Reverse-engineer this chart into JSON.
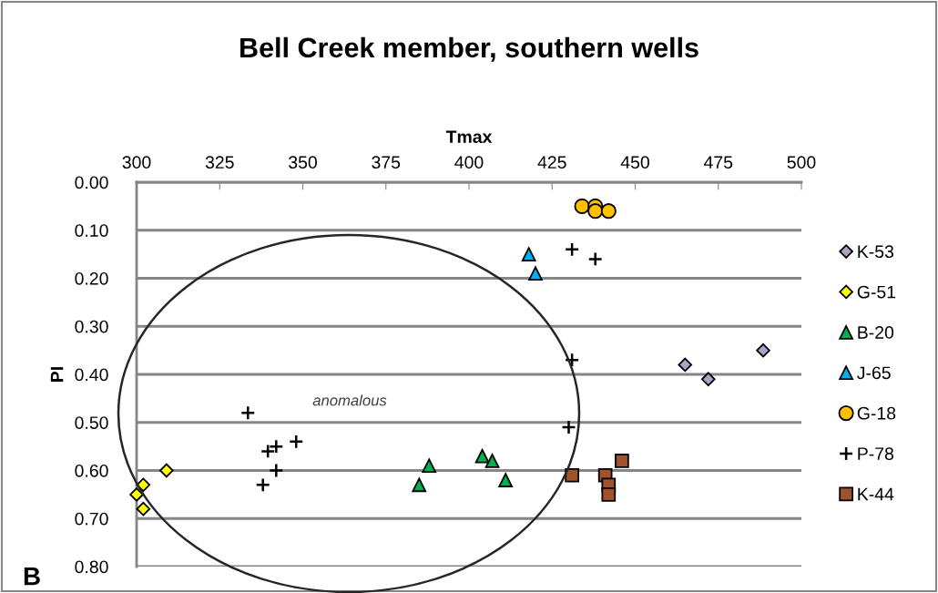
{
  "chart_data": {
    "type": "scatter",
    "title": "Bell Creek member, southern wells",
    "xlabel": "Tmax",
    "ylabel": "PI",
    "xlim": [
      300,
      500
    ],
    "xticks": [
      300,
      325,
      350,
      375,
      400,
      425,
      450,
      475,
      500
    ],
    "ylim": [
      0.8,
      0.0
    ],
    "yticks": [
      {
        "value": 0.0,
        "label": "0.00"
      },
      {
        "value": 0.1,
        "label": "0.10"
      },
      {
        "value": 0.2,
        "label": "0.20"
      },
      {
        "value": 0.3,
        "label": "0.30"
      },
      {
        "value": 0.4,
        "label": "0.40"
      },
      {
        "value": 0.5,
        "label": "0.50"
      },
      {
        "value": 0.6,
        "label": "0.60"
      },
      {
        "value": 0.7,
        "label": "0.70"
      },
      {
        "value": 0.8,
        "label": "0.80"
      }
    ],
    "grid": "y",
    "legend": "right",
    "annotations": [
      "anomalous",
      "B"
    ],
    "series": [
      {
        "name": "K-53",
        "color": "#b1a0c7",
        "marker": "diamond",
        "x": [
          465,
          472,
          488.5
        ],
        "values": [
          0.38,
          0.41,
          0.35
        ]
      },
      {
        "name": "G-51",
        "color": "#ffff00",
        "marker": "diamond",
        "x": [
          309,
          302,
          300,
          302
        ],
        "values": [
          0.6,
          0.63,
          0.65,
          0.68
        ]
      },
      {
        "name": "B-20",
        "color": "#00b050",
        "marker": "triangle",
        "x": [
          385,
          388,
          404,
          407,
          411
        ],
        "values": [
          0.63,
          0.59,
          0.57,
          0.58,
          0.62
        ]
      },
      {
        "name": "J-65",
        "color": "#00b0f0",
        "marker": "triangle",
        "x": [
          418,
          420
        ],
        "values": [
          0.15,
          0.19
        ]
      },
      {
        "name": "G-18",
        "color": "#ffc000",
        "marker": "circle",
        "x": [
          434,
          438,
          438,
          442
        ],
        "values": [
          0.05,
          0.05,
          0.06,
          0.06
        ]
      },
      {
        "name": "P-78",
        "color": "#000000",
        "marker": "cross",
        "x": [
          431,
          438,
          431,
          430,
          333.5,
          342,
          339.5,
          348,
          342,
          338
        ],
        "values": [
          0.14,
          0.16,
          0.37,
          0.51,
          0.48,
          0.55,
          0.56,
          0.54,
          0.6,
          0.63
        ]
      },
      {
        "name": "K-44",
        "color": "#a0522d",
        "marker": "square",
        "x": [
          431,
          441,
          446,
          442,
          442
        ],
        "values": [
          0.61,
          0.61,
          0.58,
          0.63,
          0.65
        ]
      }
    ]
  }
}
